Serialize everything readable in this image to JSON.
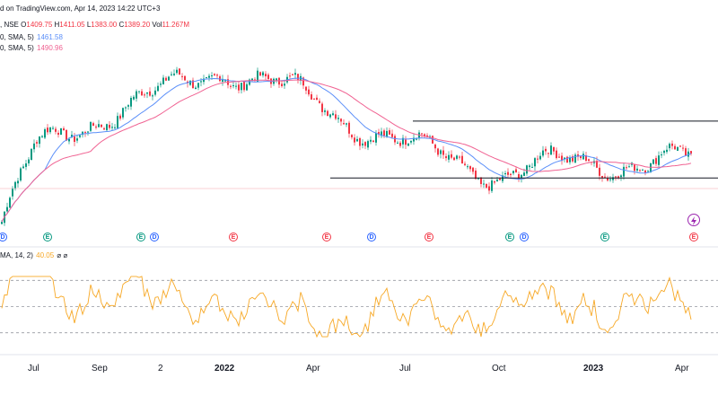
{
  "header": {
    "published": "d on TradingView.com, Apr 14, 2023 14:22 UTC+3",
    "symbol_suffix": ", NSE",
    "ohlc": [
      {
        "label": "O",
        "value": "1409.75",
        "color": "#f23645"
      },
      {
        "label": "H",
        "value": "1411.05",
        "color": "#f23645"
      },
      {
        "label": "L",
        "value": "1383.00",
        "color": "#f23645"
      },
      {
        "label": "C",
        "value": "1389.20",
        "color": "#f23645"
      },
      {
        "label": "Vol",
        "value": "11.267M",
        "color": "#f23645"
      }
    ],
    "ma1_label": "0, SMA, 5)",
    "ma1_value": "1461.58",
    "ma1_color": "#5b8ff9",
    "ma2_label": "0, SMA, 5)",
    "ma2_value": "1490.96",
    "ma2_color": "#f06292",
    "rsi_label": "MA, 14, 2)",
    "rsi_value": "40.05",
    "rsi_extra": "⌀ ⌀"
  },
  "colors": {
    "up": "#089981",
    "down": "#f23645",
    "ma_blue": "#5b8ff9",
    "ma_pink": "#f06292",
    "rsi": "#f7a825",
    "support": "#131722"
  },
  "x_axis": {
    "labels": [
      "Jul",
      "Sep",
      "2",
      "2022",
      "Apr",
      "Jul",
      "Oct",
      "2023",
      "Apr"
    ]
  },
  "events": [
    {
      "type": "D"
    },
    {
      "type": "E"
    },
    {
      "type": "E"
    },
    {
      "type": "D"
    },
    {
      "type": "E"
    },
    {
      "type": "E"
    },
    {
      "type": "D"
    },
    {
      "type": "E"
    },
    {
      "type": "E"
    },
    {
      "type": "D"
    },
    {
      "type": "E"
    },
    {
      "type": "E"
    }
  ],
  "chart_data": {
    "type": "candlestick",
    "key_points": [
      [
        "start",
        1240
      ],
      [
        "Jul",
        1420
      ],
      [
        "Sep",
        1500
      ],
      [
        "2",
        1545
      ],
      [
        "2022",
        1610
      ],
      [
        "Apr",
        1530
      ],
      [
        "Jul",
        1420
      ],
      [
        "Oct",
        1365
      ],
      [
        "2023",
        1395
      ],
      [
        "Apr",
        1389.2
      ]
    ],
    "support_levels": [
      1485,
      1355
    ],
    "rsi_range": [
      30,
      70
    ],
    "rsi_last": 40.05
  }
}
